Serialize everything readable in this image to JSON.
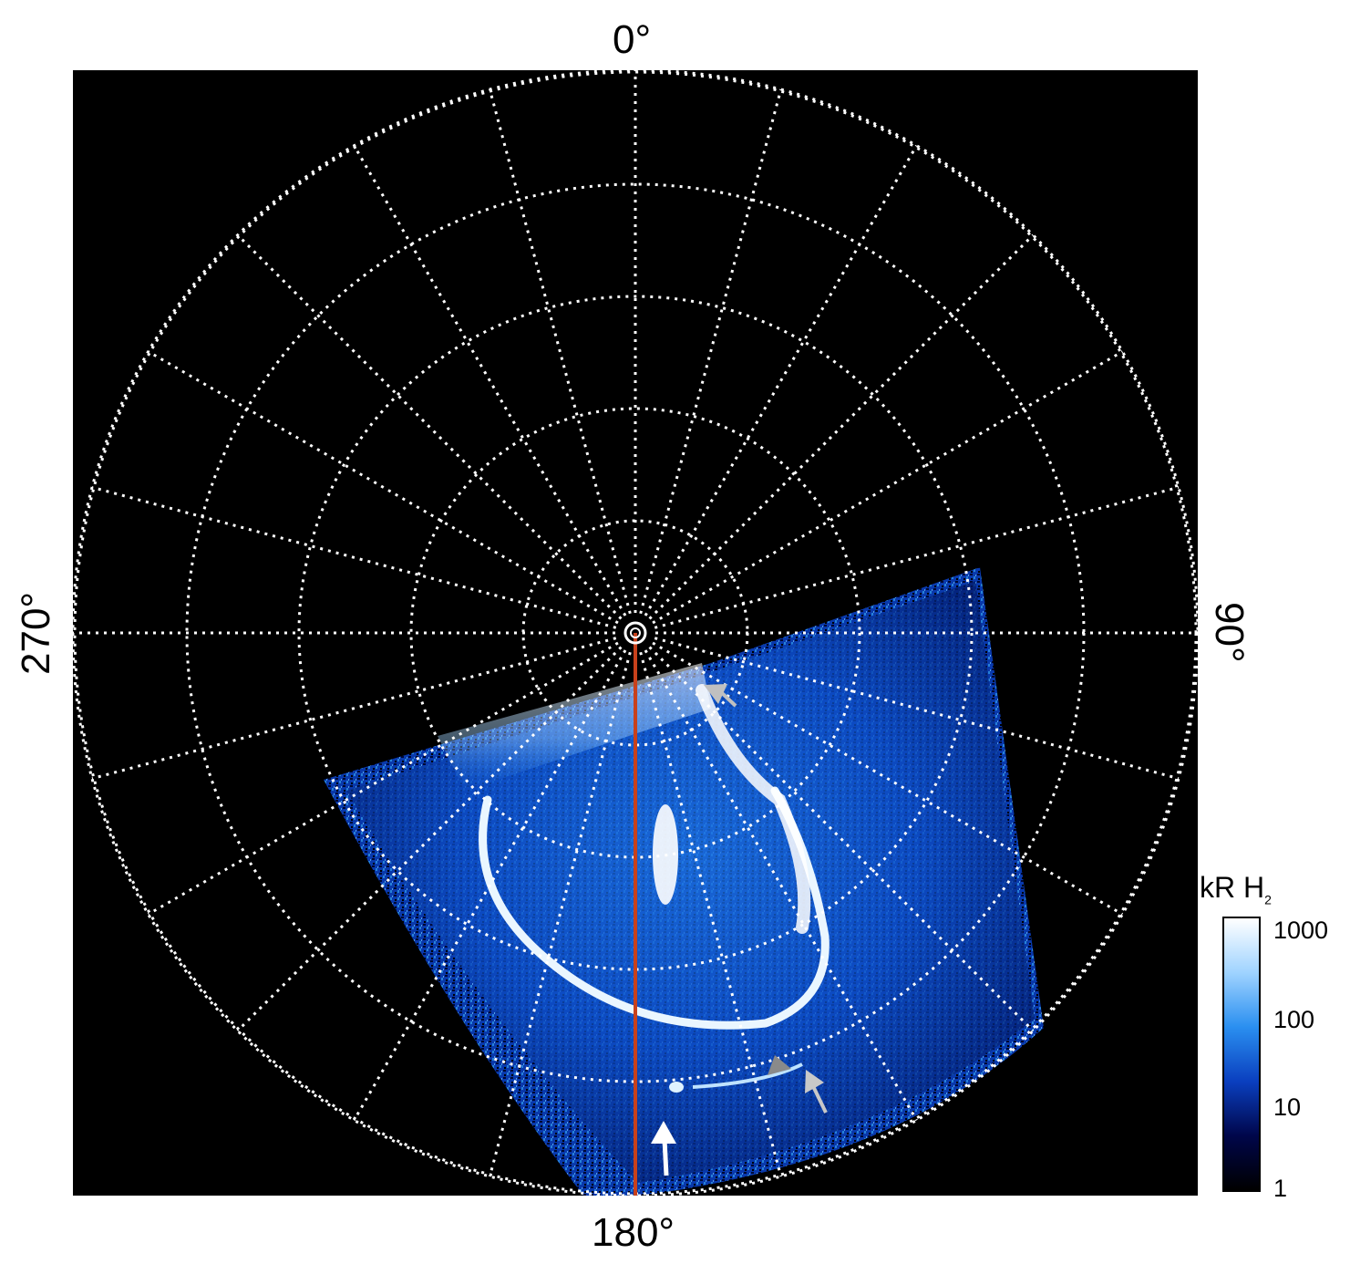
{
  "labels": {
    "top": "0°",
    "right": "90°",
    "bottom": "180°",
    "left": "270°"
  },
  "colorbar": {
    "title_main": "kR H",
    "title_sub": "2",
    "ticks": [
      "1000",
      "100",
      "10",
      "1"
    ],
    "colors": [
      "#000000",
      "#00064a",
      "#0a3fbf",
      "#2a8ff0",
      "#9fd3ff",
      "#ffffff"
    ]
  },
  "colors": {
    "background": "#000000",
    "grid": "#ffffff",
    "meridian_line": "#c8411b",
    "arrow_white": "#ffffff",
    "arrow_gray": "#b8b8b8",
    "arrow_dark": "#808080"
  }
}
